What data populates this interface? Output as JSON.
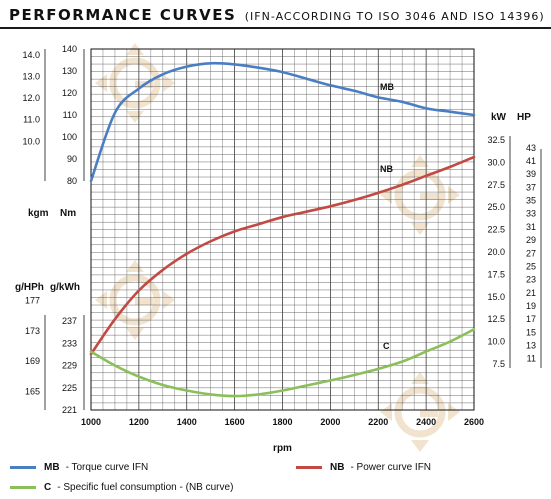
{
  "header": {
    "title": "PERFORMANCE CURVES",
    "subtitle": "(IFN-ACCORDING TO ISO 3046 AND ISO 14396)"
  },
  "chart_data": {
    "type": "line",
    "xlabel": "rpm",
    "xlim": [
      1000,
      2600
    ],
    "x_ticks": [
      "1000",
      "1200",
      "1400",
      "1600",
      "1800",
      "2000",
      "2200",
      "2400",
      "2600"
    ],
    "grid": true,
    "units": {
      "kgm": "kgm",
      "nm": "Nm",
      "ghph": "g/HPh",
      "gkwh": "g/kWh",
      "kw": "kW",
      "hp": "HP"
    },
    "axes": {
      "nm": {
        "range": [
          80,
          140
        ],
        "ticks": [
          "80",
          "90",
          "100",
          "110",
          "120",
          "130",
          "140"
        ]
      },
      "kgm": {
        "ticks": [
          "10.0",
          "11.0",
          "12.0",
          "13.0",
          "14.0"
        ]
      },
      "gkwh": {
        "range": [
          221,
          237
        ],
        "ticks": [
          "221",
          "225",
          "229",
          "233",
          "237"
        ]
      },
      "ghph": {
        "ticks": [
          "165",
          "169",
          "173",
          "177"
        ]
      },
      "kw": {
        "range": [
          7.5,
          32.5
        ],
        "ticks": [
          "7.5",
          "10.0",
          "12.5",
          "15.0",
          "17.5",
          "20.0",
          "22.5",
          "25.0",
          "27.5",
          "30.0",
          "32.5"
        ]
      },
      "hp": {
        "ticks": [
          "11",
          "13",
          "15",
          "17",
          "19",
          "21",
          "23",
          "25",
          "27",
          "29",
          "31",
          "33",
          "35",
          "37",
          "39",
          "41",
          "43"
        ]
      }
    },
    "series": [
      {
        "key": "MB",
        "label": "MB",
        "axis": "nm",
        "color": "#4a7ec3",
        "x": [
          1000,
          1100,
          1200,
          1300,
          1400,
          1500,
          1600,
          1700,
          1800,
          1900,
          2000,
          2100,
          2200,
          2300,
          2400,
          2500,
          2600
        ],
        "y": [
          80.0,
          111.0,
          122.0,
          128.5,
          132.0,
          133.5,
          133.0,
          131.5,
          129.5,
          126.5,
          123.5,
          121.0,
          118.0,
          116.0,
          113.0,
          111.5,
          110.0
        ]
      },
      {
        "key": "NB",
        "label": "NB",
        "axis": "kw",
        "color": "#c24a44",
        "x": [
          1000,
          1100,
          1200,
          1300,
          1400,
          1500,
          1600,
          1700,
          1800,
          1900,
          2000,
          2100,
          2200,
          2300,
          2400,
          2500,
          2600
        ],
        "y": [
          8.6,
          12.5,
          15.7,
          18.0,
          19.8,
          21.2,
          22.3,
          23.1,
          23.9,
          24.5,
          25.1,
          25.8,
          26.6,
          27.5,
          28.5,
          29.5,
          30.6
        ]
      },
      {
        "key": "C",
        "label": "C",
        "axis": "gkwh",
        "color": "#8abf5a",
        "x": [
          1000,
          1100,
          1200,
          1300,
          1400,
          1500,
          1600,
          1700,
          1800,
          1900,
          2000,
          2100,
          2200,
          2300,
          2400,
          2500,
          2600
        ],
        "y": [
          231.5,
          229.0,
          227.0,
          225.5,
          224.5,
          223.8,
          223.5,
          223.8,
          224.5,
          225.4,
          226.3,
          227.3,
          228.4,
          229.7,
          231.5,
          233.3,
          235.5
        ]
      }
    ]
  },
  "legend": {
    "mb": {
      "key": "MB",
      "text": "- Torque curve IFN"
    },
    "nb": {
      "key": "NB",
      "text": "- Power curve IFN"
    },
    "c": {
      "key": "C",
      "text": "- Specific fuel consumption - (NB curve)"
    }
  }
}
